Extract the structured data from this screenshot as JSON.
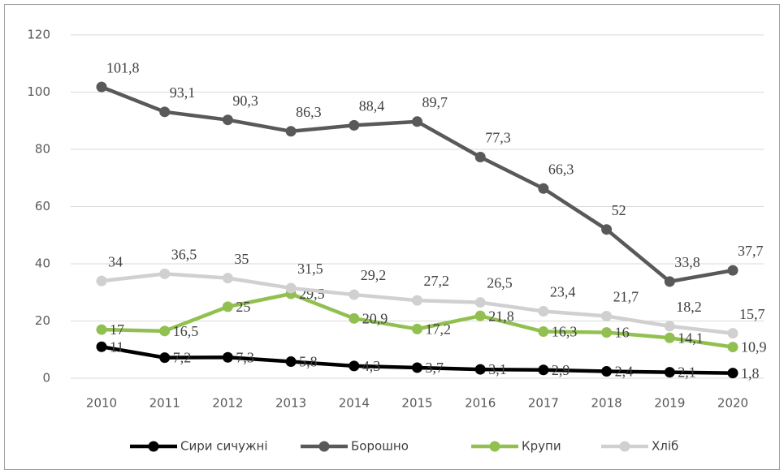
{
  "chart_data": {
    "type": "line",
    "categories": [
      "2010",
      "2011",
      "2012",
      "2013",
      "2014",
      "2015",
      "2016",
      "2017",
      "2018",
      "2019",
      "2020"
    ],
    "series": [
      {
        "name": "Сири сичужні",
        "color": "#000000",
        "values": [
          11,
          7.2,
          7.3,
          5.8,
          4.3,
          3.7,
          3.1,
          2.9,
          2.4,
          2.1,
          1.8
        ],
        "value_labels": [
          "11",
          "7,2",
          "7,3",
          "5,8",
          "4,3",
          "3,7",
          "3,1",
          "2,9",
          "2,4",
          "2,1",
          "1,8"
        ]
      },
      {
        "name": "Борошно",
        "color": "#595959",
        "values": [
          101.8,
          93.1,
          90.3,
          86.3,
          88.4,
          89.7,
          77.3,
          66.3,
          52,
          33.8,
          37.7
        ],
        "value_labels": [
          "101,8",
          "93,1",
          "90,3",
          "86,3",
          "88,4",
          "89,7",
          "77,3",
          "66,3",
          "52",
          "33,8",
          "37,7"
        ]
      },
      {
        "name": "Крупи",
        "color": "#92c050",
        "values": [
          17,
          16.5,
          25,
          29.5,
          20.9,
          17.2,
          21.8,
          16.3,
          16,
          14.1,
          10.9
        ],
        "value_labels": [
          "17",
          "16,5",
          "25",
          "29,5",
          "20,9",
          "17,2",
          "21,8",
          "16,3",
          "16",
          "14,1",
          "10,9"
        ]
      },
      {
        "name": "Хліб",
        "color": "#d0d0d0",
        "values": [
          34,
          36.5,
          35,
          31.5,
          29.2,
          27.2,
          26.5,
          23.4,
          21.7,
          18.2,
          15.7
        ],
        "value_labels": [
          "34",
          "36,5",
          "35",
          "31,5",
          "29,2",
          "27,2",
          "26,5",
          "23,4",
          "21,7",
          "18,2",
          "15,7"
        ]
      }
    ],
    "ylim": [
      0,
      120
    ],
    "yticks": [
      0,
      20,
      40,
      60,
      80,
      100,
      120
    ],
    "grid": true,
    "legend": "bottom"
  }
}
